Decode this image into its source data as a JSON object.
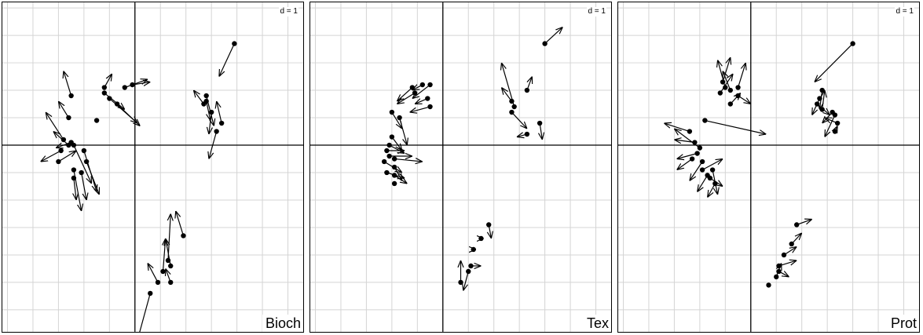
{
  "chart_data": [
    {
      "type": "scatter",
      "label": "Bioch",
      "d_label": "d = 1",
      "grid": true,
      "xlim": [
        -2.6,
        3.3
      ],
      "ylim": [
        -3.4,
        2.6
      ],
      "points": [
        {
          "x": 1.95,
          "y": 1.85,
          "dx": -0.3,
          "dy": -0.6
        },
        {
          "x": 1.4,
          "y": 0.9,
          "dx": 0.15,
          "dy": -0.55
        },
        {
          "x": 1.5,
          "y": 0.6,
          "dx": -0.05,
          "dy": -0.4
        },
        {
          "x": 1.7,
          "y": 0.4,
          "dx": -0.1,
          "dy": 0.4
        },
        {
          "x": 1.6,
          "y": 0.25,
          "dx": -0.15,
          "dy": -0.5
        },
        {
          "x": 1.35,
          "y": 0.75,
          "dx": -0.2,
          "dy": 0.25
        },
        {
          "x": 1.4,
          "y": 0.8,
          "dx": 0.08,
          "dy": -0.35
        },
        {
          "x": -0.6,
          "y": 1.05,
          "dx": 0.15,
          "dy": 0.25
        },
        {
          "x": -0.2,
          "y": 1.05,
          "dx": 0.45,
          "dy": 0.15
        },
        {
          "x": -0.05,
          "y": 1.1,
          "dx": 0.35,
          "dy": 0.05
        },
        {
          "x": -0.6,
          "y": 0.95,
          "dx": 0.4,
          "dy": -0.3
        },
        {
          "x": -0.5,
          "y": 0.85,
          "dx": 0.55,
          "dy": -0.45
        },
        {
          "x": -0.35,
          "y": 0.75,
          "dx": 0.45,
          "dy": -0.4
        },
        {
          "x": -0.75,
          "y": 0.45,
          "dx": 0.0,
          "dy": 0.0
        },
        {
          "x": -1.25,
          "y": 0.9,
          "dx": -0.15,
          "dy": 0.45
        },
        {
          "x": -1.3,
          "y": 0.5,
          "dx": -0.2,
          "dy": 0.3
        },
        {
          "x": -1.4,
          "y": 0.1,
          "dx": -0.35,
          "dy": 0.5
        },
        {
          "x": -1.3,
          "y": 0.0,
          "dx": -0.3,
          "dy": 0.25
        },
        {
          "x": -1.25,
          "y": 0.05,
          "dx": -0.3,
          "dy": -0.1
        },
        {
          "x": -1.45,
          "y": -0.1,
          "dx": -0.4,
          "dy": -0.2
        },
        {
          "x": -1.5,
          "y": -0.3,
          "dx": 0.35,
          "dy": 0.2
        },
        {
          "x": -1.2,
          "y": 0.0,
          "dx": 0.35,
          "dy": -0.7
        },
        {
          "x": -1.0,
          "y": -0.1,
          "dx": 0.25,
          "dy": -0.75
        },
        {
          "x": -0.95,
          "y": -0.3,
          "dx": 0.25,
          "dy": -0.6
        },
        {
          "x": -1.05,
          "y": -0.5,
          "dx": 0.1,
          "dy": -0.5
        },
        {
          "x": -1.2,
          "y": -0.45,
          "dx": 0.15,
          "dy": -0.75
        },
        {
          "x": -1.2,
          "y": -0.6,
          "dx": 0.05,
          "dy": -0.4
        },
        {
          "x": 0.95,
          "y": -1.65,
          "dx": -0.15,
          "dy": 0.45
        },
        {
          "x": 0.7,
          "y": -2.2,
          "dx": -0.1,
          "dy": 0.5
        },
        {
          "x": 0.55,
          "y": -2.3,
          "dx": 0.05,
          "dy": 0.6
        },
        {
          "x": 0.45,
          "y": -2.5,
          "dx": -0.2,
          "dy": 0.35
        },
        {
          "x": 0.65,
          "y": -2.1,
          "dx": 0.05,
          "dy": 0.85
        },
        {
          "x": 0.7,
          "y": -2.5,
          "dx": -0.1,
          "dy": 0.25
        },
        {
          "x": 0.3,
          "y": -2.7,
          "dx": -0.25,
          "dy": -0.85
        }
      ]
    },
    {
      "type": "scatter",
      "label": "Tex",
      "d_label": "d = 1",
      "grid": true,
      "xlim": [
        -2.6,
        3.3
      ],
      "ylim": [
        -3.4,
        2.6
      ],
      "points": [
        {
          "x": 2.0,
          "y": 1.85,
          "dx": 0.35,
          "dy": 0.3
        },
        {
          "x": 1.65,
          "y": 1.0,
          "dx": 0.1,
          "dy": 0.25
        },
        {
          "x": 1.35,
          "y": 0.8,
          "dx": -0.2,
          "dy": 0.25
        },
        {
          "x": 1.4,
          "y": 0.7,
          "dx": -0.25,
          "dy": 0.8
        },
        {
          "x": 1.35,
          "y": 0.6,
          "dx": 0.3,
          "dy": -0.3
        },
        {
          "x": 1.9,
          "y": 0.4,
          "dx": 0.05,
          "dy": -0.3
        },
        {
          "x": 1.65,
          "y": 0.2,
          "dx": -0.2,
          "dy": -0.05
        },
        {
          "x": -0.6,
          "y": 1.05,
          "dx": -0.3,
          "dy": -0.25
        },
        {
          "x": -0.4,
          "y": 1.1,
          "dx": -0.2,
          "dy": -0.1
        },
        {
          "x": -0.25,
          "y": 1.1,
          "dx": -0.35,
          "dy": -0.25
        },
        {
          "x": -0.55,
          "y": 0.95,
          "dx": -0.35,
          "dy": -0.2
        },
        {
          "x": -0.3,
          "y": 0.85,
          "dx": -0.25,
          "dy": -0.1
        },
        {
          "x": -0.25,
          "y": 0.7,
          "dx": -0.4,
          "dy": -0.1
        },
        {
          "x": -1.0,
          "y": 0.6,
          "dx": 0.2,
          "dy": -0.3
        },
        {
          "x": -0.85,
          "y": 0.5,
          "dx": 0.15,
          "dy": -0.5
        },
        {
          "x": -1.0,
          "y": 0.15,
          "dx": 0.2,
          "dy": -0.25
        },
        {
          "x": -1.05,
          "y": 0.0,
          "dx": 0.3,
          "dy": -0.15
        },
        {
          "x": -1.1,
          "y": -0.1,
          "dx": 0.35,
          "dy": 0.0
        },
        {
          "x": -1.05,
          "y": -0.2,
          "dx": 0.45,
          "dy": 0.0
        },
        {
          "x": -0.95,
          "y": -0.25,
          "dx": 0.55,
          "dy": -0.05
        },
        {
          "x": -1.15,
          "y": -0.3,
          "dx": 0.35,
          "dy": -0.2
        },
        {
          "x": -0.95,
          "y": -0.4,
          "dx": 0.15,
          "dy": -0.25
        },
        {
          "x": -1.1,
          "y": -0.5,
          "dx": 0.35,
          "dy": -0.1
        },
        {
          "x": -0.95,
          "y": -0.55,
          "dx": 0.25,
          "dy": -0.15
        },
        {
          "x": -0.95,
          "y": -0.7,
          "dx": 0.0,
          "dy": 0.0
        },
        {
          "x": 0.9,
          "y": -1.45,
          "dx": 0.05,
          "dy": -0.25
        },
        {
          "x": 0.75,
          "y": -1.7,
          "dx": 0.05,
          "dy": 0.0
        },
        {
          "x": 0.6,
          "y": -1.9,
          "dx": 0.05,
          "dy": 0.0
        },
        {
          "x": 0.55,
          "y": -2.2,
          "dx": 0.2,
          "dy": 0.0
        },
        {
          "x": 0.5,
          "y": -2.3,
          "dx": -0.1,
          "dy": -0.35
        },
        {
          "x": 0.35,
          "y": -2.5,
          "dx": 0.0,
          "dy": 0.4
        }
      ]
    },
    {
      "type": "scatter",
      "label": "Prot",
      "d_label": "d = 1",
      "grid": true,
      "xlim": [
        -2.6,
        3.3
      ],
      "ylim": [
        -3.4,
        2.6
      ],
      "points": [
        {
          "x": 2.0,
          "y": 1.85,
          "dx": -0.75,
          "dy": -0.7
        },
        {
          "x": 1.4,
          "y": 1.0,
          "dx": -0.05,
          "dy": -0.35
        },
        {
          "x": 1.35,
          "y": 0.85,
          "dx": -0.15,
          "dy": -0.3
        },
        {
          "x": 1.3,
          "y": 0.75,
          "dx": 0.25,
          "dy": -0.2
        },
        {
          "x": 1.4,
          "y": 0.65,
          "dx": 0.05,
          "dy": 0.35
        },
        {
          "x": 1.6,
          "y": 0.6,
          "dx": -0.2,
          "dy": -0.2
        },
        {
          "x": 1.65,
          "y": 0.55,
          "dx": -0.2,
          "dy": -0.4
        },
        {
          "x": 1.7,
          "y": 0.4,
          "dx": -0.25,
          "dy": 0.1
        },
        {
          "x": 1.65,
          "y": 0.25,
          "dx": 0.05,
          "dy": 0.1
        },
        {
          "x": -0.55,
          "y": 1.15,
          "dx": 0.15,
          "dy": 0.45
        },
        {
          "x": -0.5,
          "y": 1.05,
          "dx": -0.15,
          "dy": 0.5
        },
        {
          "x": -0.4,
          "y": 1.0,
          "dx": -0.15,
          "dy": 0.35
        },
        {
          "x": -0.25,
          "y": 1.05,
          "dx": 0.15,
          "dy": 0.45
        },
        {
          "x": -0.6,
          "y": 0.95,
          "dx": 0.25,
          "dy": 0.35
        },
        {
          "x": -0.25,
          "y": 0.9,
          "dx": 0.25,
          "dy": -0.15
        },
        {
          "x": -0.4,
          "y": 0.75,
          "dx": 0.2,
          "dy": 0.2
        },
        {
          "x": -0.9,
          "y": 0.45,
          "dx": 1.2,
          "dy": -0.25
        },
        {
          "x": -1.2,
          "y": 0.25,
          "dx": -0.5,
          "dy": 0.15
        },
        {
          "x": -1.1,
          "y": 0.05,
          "dx": -0.4,
          "dy": 0.05
        },
        {
          "x": -1.0,
          "y": -0.05,
          "dx": -0.5,
          "dy": 0.35
        },
        {
          "x": -1.05,
          "y": -0.15,
          "dx": -0.4,
          "dy": -0.1
        },
        {
          "x": -1.15,
          "y": -0.25,
          "dx": -0.3,
          "dy": -0.2
        },
        {
          "x": -0.95,
          "y": -0.3,
          "dx": -0.25,
          "dy": -0.35
        },
        {
          "x": -0.95,
          "y": -0.45,
          "dx": 0.4,
          "dy": 0.2
        },
        {
          "x": -0.75,
          "y": -0.45,
          "dx": 0.1,
          "dy": -0.45
        },
        {
          "x": -0.85,
          "y": -0.55,
          "dx": -0.2,
          "dy": -0.3
        },
        {
          "x": -0.8,
          "y": -0.6,
          "dx": 0.25,
          "dy": -0.15
        },
        {
          "x": -0.7,
          "y": -0.7,
          "dx": -0.15,
          "dy": -0.25
        },
        {
          "x": 0.9,
          "y": -1.45,
          "dx": 0.3,
          "dy": 0.1
        },
        {
          "x": 0.8,
          "y": -1.8,
          "dx": 0.2,
          "dy": 0.2
        },
        {
          "x": 0.65,
          "y": -2.0,
          "dx": 0.25,
          "dy": 0.15
        },
        {
          "x": 0.55,
          "y": -2.2,
          "dx": 0.35,
          "dy": 0.1
        },
        {
          "x": 0.55,
          "y": -2.3,
          "dx": 0.2,
          "dy": -0.1
        },
        {
          "x": 0.5,
          "y": -2.4,
          "dx": 0.1,
          "dy": 0.25
        },
        {
          "x": 0.35,
          "y": -2.55,
          "dx": 0.0,
          "dy": 0.0
        }
      ]
    }
  ]
}
